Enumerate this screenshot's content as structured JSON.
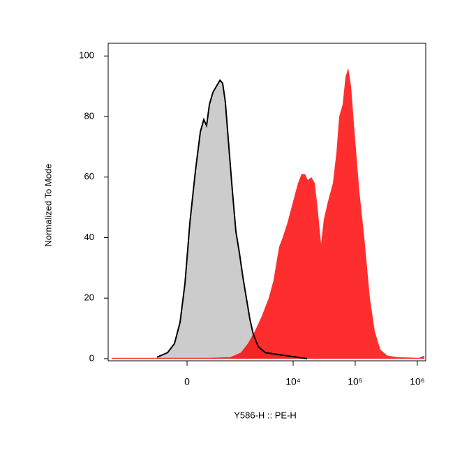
{
  "chart_data": {
    "type": "histogram-overlay",
    "xlabel": "Y586-H :: PE-H",
    "ylabel": "Normalized To Mode",
    "xscale": "arcsinh",
    "xlim": [
      -3640,
      1366000
    ],
    "ylim": [
      -0.7,
      104.2
    ],
    "xticks": [
      0,
      {
        "value": 10000,
        "label": "10⁴"
      },
      {
        "value": 100000,
        "label": "10⁵"
      },
      {
        "value": 1000000,
        "label": "10⁶"
      }
    ],
    "yticks": [
      0,
      20,
      40,
      60,
      80,
      100
    ],
    "series": [
      {
        "color": "#cccccc",
        "line_color": "#000000",
        "x": [
          -532,
          -309,
          -189,
          -103,
          -30,
          41,
          124,
          201,
          259,
          309,
          364,
          436,
          516,
          606,
          680,
          762,
          881,
          1020,
          1167,
          1337,
          1529,
          1745,
          1995,
          2274,
          2728,
          3548,
          5233,
          7720,
          11380,
          16780
        ],
        "values": [
          0.5,
          2,
          5,
          12,
          25,
          45,
          62,
          75,
          79,
          77,
          84,
          88,
          90,
          92,
          91,
          85,
          70,
          55,
          42,
          35,
          27,
          20,
          13,
          8,
          4,
          2,
          1.5,
          1,
          0.5,
          0
        ]
      },
      {
        "color": "#ff0000",
        "x": [
          -3195,
          364,
          933,
          1411,
          1843,
          2395,
          3109,
          4034,
          4841,
          5512,
          5954,
          6778,
          8130,
          10000,
          11990,
          13640,
          15520,
          17230,
          19600,
          22300,
          24740,
          28180,
          31240,
          36460,
          43750,
          49780,
          55230,
          62840,
          69700,
          77300,
          85770,
          97570,
          116900,
          140200,
          172400,
          206600,
          254100,
          329200,
          484900,
          1054000,
          1296000
        ],
        "values": [
          0.3,
          0.3,
          0.5,
          2,
          5,
          9,
          14,
          20,
          26,
          33,
          37,
          40,
          45,
          52,
          58,
          61,
          61,
          59,
          60,
          58,
          50,
          38,
          46,
          52,
          58,
          68,
          80,
          84,
          93,
          96,
          90,
          75,
          55,
          40,
          20,
          9,
          3,
          1,
          0.5,
          0.3,
          1
        ]
      }
    ]
  }
}
